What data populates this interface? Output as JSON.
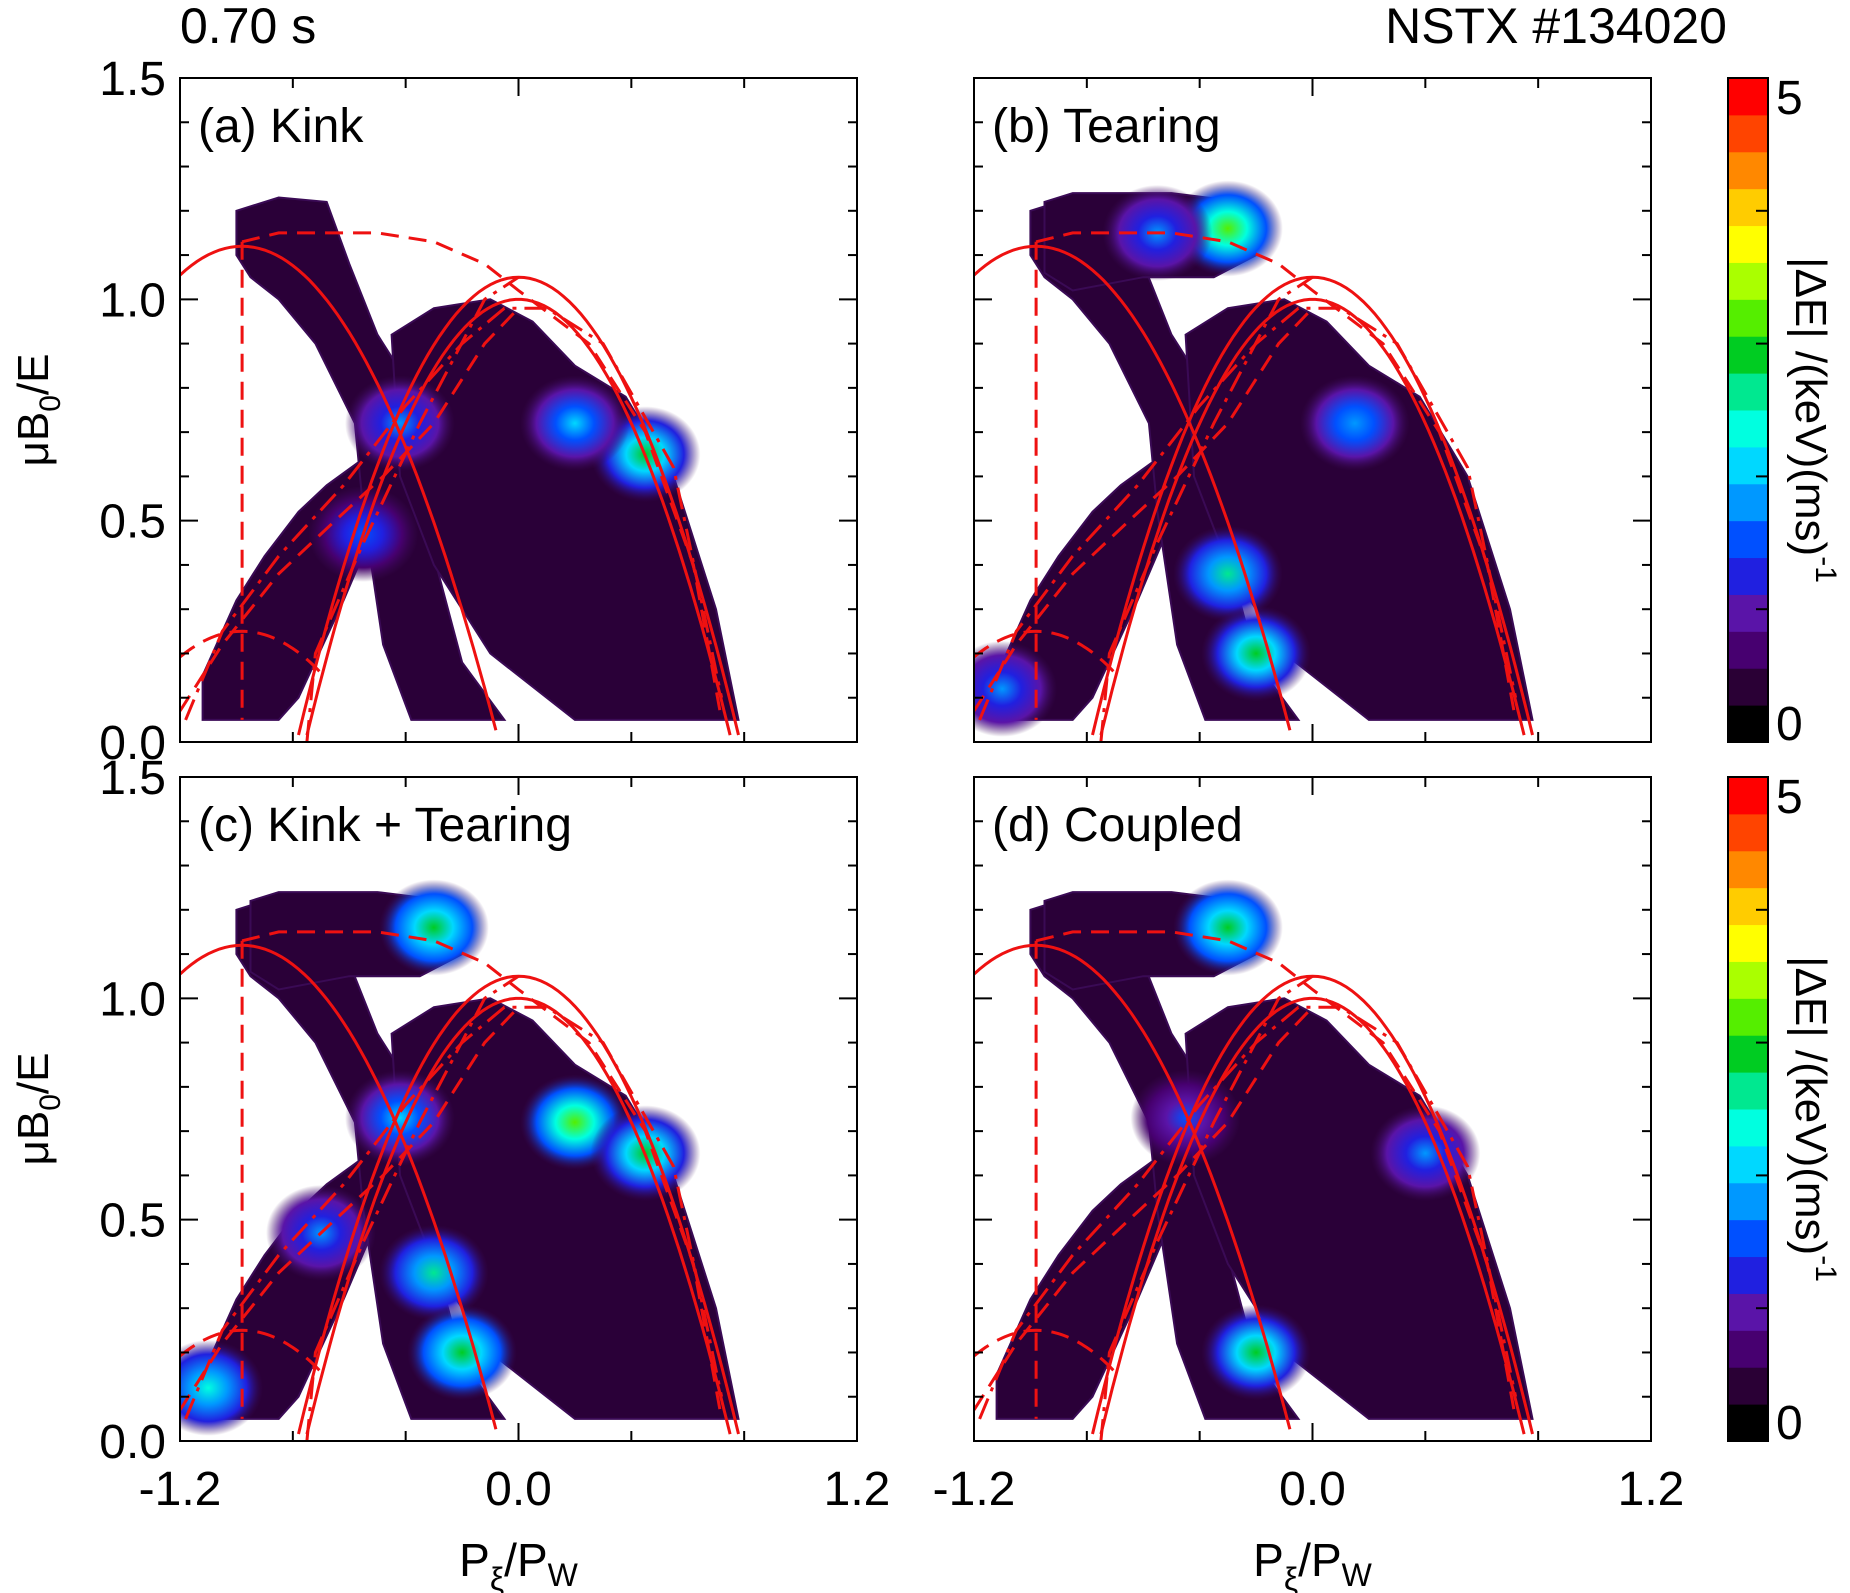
{
  "header": {
    "time_label": "0.70 s",
    "shot_label": "NSTX #134020"
  },
  "chart_data": [
    {
      "type": "heatmap",
      "panel_label": "(a) Kink",
      "xlabel": "Pξ/PW",
      "ylabel": "μB0/E",
      "xlim": [
        -1.2,
        1.2
      ],
      "ylim": [
        0.0,
        1.5
      ],
      "x_ticks": [
        "-1.2",
        "0.0",
        "1.2"
      ],
      "y_ticks": [
        "0.0",
        "0.5",
        "1.0",
        "1.5"
      ],
      "hotspots": [
        {
          "x": 0.45,
          "y": 0.65,
          "value": 2.8
        },
        {
          "x": 0.2,
          "y": 0.72,
          "value": 2.2
        },
        {
          "x": -0.42,
          "y": 0.72,
          "value": 1.8
        },
        {
          "x": -0.55,
          "y": 0.47,
          "value": 1.6
        }
      ]
    },
    {
      "type": "heatmap",
      "panel_label": "(b) Tearing",
      "xlabel": "Pξ/PW",
      "ylabel": "μB0/E",
      "xlim": [
        -1.2,
        1.2
      ],
      "ylim": [
        0.0,
        1.5
      ],
      "x_ticks": [
        "-1.2",
        "0.0",
        "1.2"
      ],
      "y_ticks": [
        "0.0",
        "0.5",
        "1.0",
        "1.5"
      ],
      "hotspots": [
        {
          "x": -0.3,
          "y": 1.16,
          "value": 3.2
        },
        {
          "x": -0.55,
          "y": 1.15,
          "value": 1.8
        },
        {
          "x": 0.15,
          "y": 0.72,
          "value": 1.9
        },
        {
          "x": -0.3,
          "y": 0.38,
          "value": 2.6
        },
        {
          "x": -0.2,
          "y": 0.2,
          "value": 2.8
        },
        {
          "x": -1.1,
          "y": 0.12,
          "value": 1.7
        }
      ]
    },
    {
      "type": "heatmap",
      "panel_label": "(c) Kink + Tearing",
      "xlabel": "Pξ/PW",
      "ylabel": "μB0/E",
      "xlim": [
        -1.2,
        1.2
      ],
      "ylim": [
        0.0,
        1.5
      ],
      "x_ticks": [
        "-1.2",
        "0.0",
        "1.2"
      ],
      "y_ticks": [
        "0.0",
        "0.5",
        "1.0",
        "1.5"
      ],
      "hotspots": [
        {
          "x": -0.3,
          "y": 1.16,
          "value": 3.0
        },
        {
          "x": 0.2,
          "y": 0.72,
          "value": 3.2
        },
        {
          "x": 0.45,
          "y": 0.65,
          "value": 2.8
        },
        {
          "x": -0.42,
          "y": 0.73,
          "value": 2.0
        },
        {
          "x": -0.3,
          "y": 0.38,
          "value": 2.6
        },
        {
          "x": -0.2,
          "y": 0.2,
          "value": 3.0
        },
        {
          "x": -1.1,
          "y": 0.12,
          "value": 2.4
        },
        {
          "x": -0.7,
          "y": 0.47,
          "value": 1.7
        }
      ]
    },
    {
      "type": "heatmap",
      "panel_label": "(d) Coupled",
      "xlabel": "Pξ/PW",
      "ylabel": "μB0/E",
      "xlim": [
        -1.2,
        1.2
      ],
      "ylim": [
        0.0,
        1.5
      ],
      "x_ticks": [
        "-1.2",
        "0.0",
        "1.2"
      ],
      "y_ticks": [
        "0.0",
        "0.5",
        "1.0",
        "1.5"
      ],
      "hotspots": [
        {
          "x": -0.3,
          "y": 1.16,
          "value": 3.0
        },
        {
          "x": 0.4,
          "y": 0.65,
          "value": 1.7
        },
        {
          "x": -0.45,
          "y": 0.73,
          "value": 1.4
        },
        {
          "x": -0.2,
          "y": 0.2,
          "value": 2.8
        }
      ]
    }
  ],
  "colorbar": {
    "label_main": "|ΔE| /(keV)(ms)",
    "label_sup": "-1",
    "range": [
      0,
      5
    ],
    "tick_labels": [
      "0",
      "5"
    ],
    "colors": [
      "#000000",
      "#2a0035",
      "#470070",
      "#5a14a8",
      "#2020e0",
      "#0050ff",
      "#0098ff",
      "#00d8ff",
      "#00ffe0",
      "#00e890",
      "#00cc22",
      "#55ee00",
      "#aaff00",
      "#ffff00",
      "#ffcc00",
      "#ff8800",
      "#ff4400",
      "#ff0000"
    ]
  }
}
